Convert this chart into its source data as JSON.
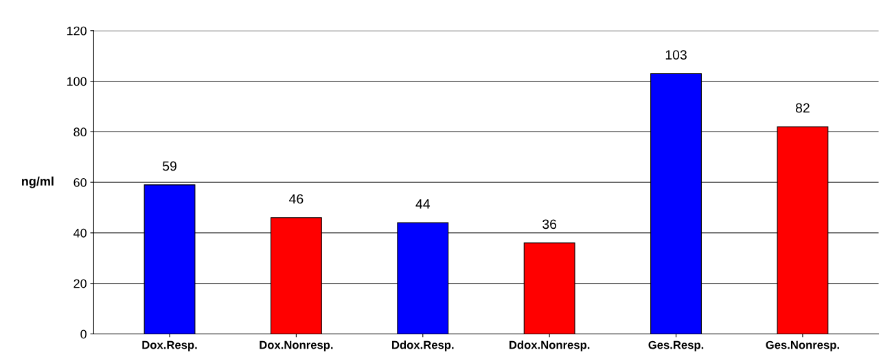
{
  "chart_data": {
    "type": "bar",
    "ylabel": "ng/ml",
    "categories": [
      "Dox.Resp.",
      "Dox.Nonresp.",
      "Ddox.Resp.",
      "Ddox.Nonresp.",
      "Ges.Resp.",
      "Ges.Nonresp."
    ],
    "values": [
      59,
      46,
      44,
      36,
      103,
      82
    ],
    "colors": [
      "#0000ff",
      "#ff0000",
      "#0000ff",
      "#ff0000",
      "#0000ff",
      "#ff0000"
    ],
    "ylim": [
      0,
      120
    ],
    "yticks": [
      0,
      20,
      40,
      60,
      80,
      100,
      120
    ],
    "grid": "y",
    "data_labels": true
  }
}
